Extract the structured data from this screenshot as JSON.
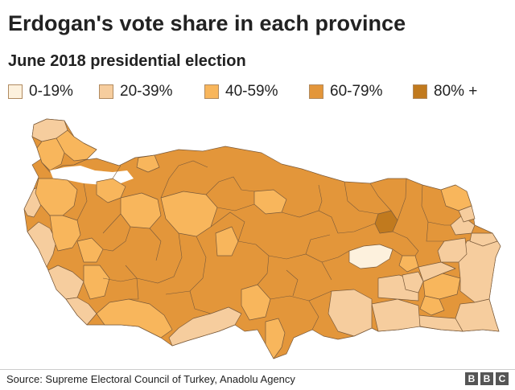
{
  "title": "Erdogan's vote share in each province",
  "subtitle": "June 2018 presidential election",
  "legend": [
    {
      "label": "0-19%",
      "color": "#fdf1dd"
    },
    {
      "label": "20-39%",
      "color": "#f6cd9e"
    },
    {
      "label": "40-59%",
      "color": "#f8b65c"
    },
    {
      "label": "60-79%",
      "color": "#e3963a"
    },
    {
      "label": "80% +",
      "color": "#c17a1e"
    }
  ],
  "map": {
    "land_color": "#e3963a",
    "water_color": "#ffffff"
  },
  "source": "Source: Supreme Electoral Council of Turkey, Anadolu Agency",
  "brand": {
    "letters": [
      "B",
      "B",
      "C"
    ]
  }
}
